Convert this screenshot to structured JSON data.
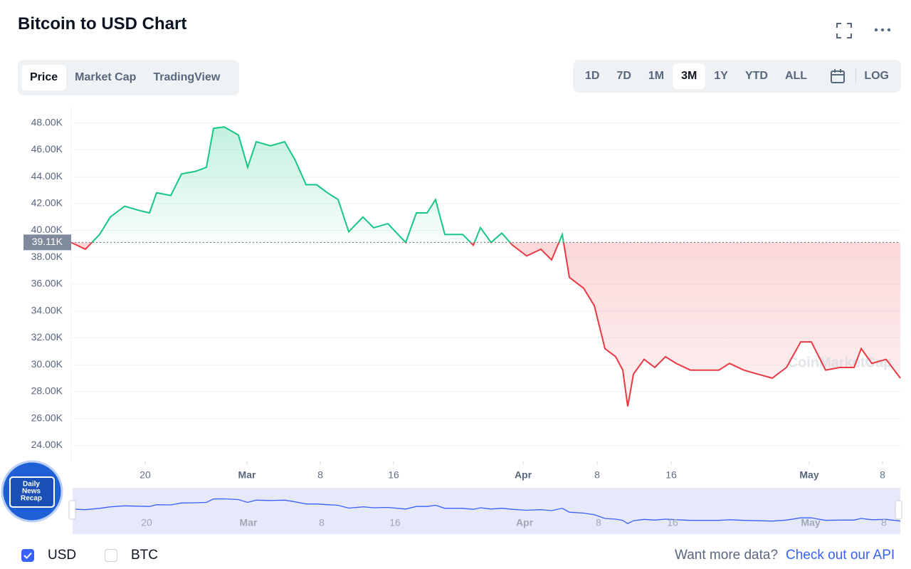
{
  "header": {
    "title": "Bitcoin to USD Chart",
    "tabs": [
      "Price",
      "Market Cap",
      "TradingView"
    ],
    "ranges": [
      "1D",
      "7D",
      "1M",
      "3M",
      "1Y",
      "YTD",
      "ALL"
    ],
    "log": "LOG"
  },
  "chart_data": {
    "type": "line",
    "x": [
      0,
      2,
      4,
      5.5,
      7.5,
      9.5,
      11,
      12,
      14,
      15.5,
      17.5,
      19,
      20,
      21.5,
      23.5,
      24.8,
      26,
      28,
      30,
      31.5,
      33,
      34.5,
      36,
      37.5,
      39,
      41,
      42.5,
      44.5,
      47,
      48.5,
      50,
      51.2,
      52.5,
      55,
      56.5,
      57.5,
      59,
      60.5,
      62,
      64,
      66,
      67.5,
      69,
      70,
      72,
      73.5,
      75,
      76.5,
      77.5,
      78.2,
      79,
      80.5,
      82,
      83.5,
      85,
      87,
      89,
      91,
      92.5,
      94.5,
      96.5,
      98.5,
      100.5,
      102.5,
      104,
      106,
      108,
      110,
      111,
      112.5,
      114.5,
      116.5
    ],
    "values": [
      39.1,
      38.6,
      39.7,
      41.0,
      41.8,
      41.5,
      41.3,
      42.8,
      42.6,
      44.2,
      44.4,
      44.7,
      47.6,
      47.7,
      47.1,
      44.7,
      46.6,
      46.3,
      46.6,
      45.2,
      43.4,
      43.4,
      42.8,
      42.3,
      39.9,
      41.0,
      40.2,
      40.5,
      39.1,
      41.3,
      41.3,
      42.3,
      39.7,
      39.7,
      38.9,
      40.2,
      39.1,
      39.8,
      38.9,
      38.1,
      38.6,
      37.8,
      39.7,
      36.5,
      35.7,
      34.4,
      31.2,
      30.6,
      29.6,
      26.9,
      29.3,
      30.4,
      29.8,
      30.6,
      30.1,
      29.6,
      29.6,
      29.6,
      30.1,
      29.6,
      29.3,
      29.0,
      29.8,
      31.7,
      31.7,
      29.6,
      29.8,
      29.8,
      31.2,
      30.1,
      30.4,
      29.0
    ],
    "xlim": [
      0,
      116.5
    ],
    "xticks": [
      {
        "value": 10.4,
        "label": "20"
      },
      {
        "value": 24.7,
        "label": "Mar"
      },
      {
        "value": 35,
        "label": "8"
      },
      {
        "value": 45.3,
        "label": "16"
      },
      {
        "value": 63.5,
        "label": "Apr"
      },
      {
        "value": 73.9,
        "label": "8"
      },
      {
        "value": 84.3,
        "label": "16"
      },
      {
        "value": 103.7,
        "label": "May"
      },
      {
        "value": 114,
        "label": "8"
      }
    ],
    "ylim": [
      22.8,
      49.2
    ],
    "yticks": [
      {
        "value": 24,
        "label": "24.00K"
      },
      {
        "value": 26,
        "label": "26.00K"
      },
      {
        "value": 28,
        "label": "28.00K"
      },
      {
        "value": 30,
        "label": "30.00K"
      },
      {
        "value": 32,
        "label": "32.00K"
      },
      {
        "value": 34,
        "label": "34.00K"
      },
      {
        "value": 36,
        "label": "36.00K"
      },
      {
        "value": 38,
        "label": "38.00K"
      },
      {
        "value": 40,
        "label": "40.00K"
      },
      {
        "value": 42,
        "label": "42.00K"
      },
      {
        "value": 44,
        "label": "44.00K"
      },
      {
        "value": 46,
        "label": "46.00K"
      },
      {
        "value": 48,
        "label": "48.00K"
      }
    ],
    "reference": {
      "value": 39.11,
      "label": "39.11K"
    },
    "color_up": "#16c784",
    "color_down": "#ea3943",
    "navigator_color": "#3861fb",
    "grid": true,
    "watermark": "CoinMarketCap"
  },
  "badge": {
    "lines": [
      "Daily",
      "News",
      "Recap"
    ]
  },
  "footer": {
    "currencies": [
      "USD",
      "BTC"
    ],
    "prompt": "Want more data?",
    "link": "Check out our API"
  }
}
